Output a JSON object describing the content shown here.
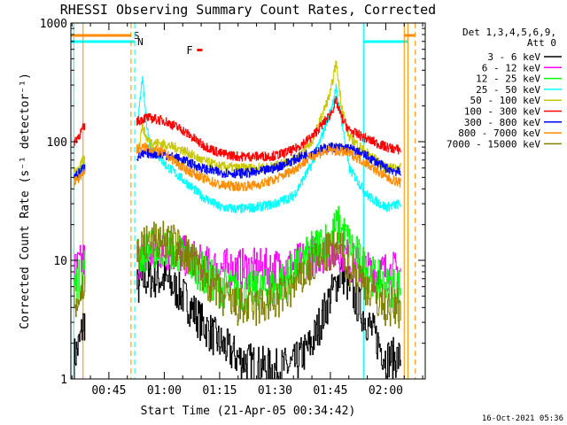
{
  "chart_data": {
    "type": "line",
    "title": "RHESSI Observing Summary Count Rates, Corrected",
    "xlabel": "Start Time (21-Apr-05 00:34:42)",
    "ylabel": "Corrected Count Rate (s⁻¹ detector⁻¹)",
    "y_scale": "log",
    "ylim": [
      1,
      1000
    ],
    "xlim": [
      "00:34:42",
      "02:10:42"
    ],
    "x_ticks": [
      "00:45",
      "01:00",
      "01:15",
      "01:30",
      "01:45",
      "02:00"
    ],
    "y_ticks": [
      "1",
      "10",
      "100",
      "1000"
    ],
    "legend": {
      "position": "right",
      "header_line1": "Det 1,3,4,5,6,9,",
      "header_line2": "Att 0"
    },
    "series": [
      {
        "name": "3 - 6 keV",
        "color": "#000000",
        "x": [
          "00:35:30",
          "00:37:00",
          "00:38:00",
          "00:53:00",
          "00:55:00",
          "01:00:00",
          "01:05:00",
          "01:10:00",
          "01:15:00",
          "01:20:00",
          "01:25:00",
          "01:30:00",
          "01:35:00",
          "01:40:00",
          "01:45:00",
          "01:48:00",
          "01:50:00",
          "01:55:00",
          "01:58:00",
          "02:00:00",
          "02:04:00"
        ],
        "y": [
          1.5,
          2,
          3,
          6,
          7,
          7,
          5,
          3,
          2,
          1.5,
          1.3,
          1.2,
          1.3,
          2,
          5,
          8,
          6,
          3,
          2,
          1.5,
          1.5
        ]
      },
      {
        "name": "6 - 12 keV",
        "color": "#ff00ff",
        "x": [
          "00:35:30",
          "00:37:00",
          "00:38:00",
          "00:53:00",
          "00:55:00",
          "01:00:00",
          "01:05:00",
          "01:08:00",
          "01:10:00",
          "01:15:00",
          "01:20:00",
          "01:25:00",
          "01:30:00",
          "01:35:00",
          "01:40:00",
          "01:45:00",
          "01:48:00",
          "01:50:00",
          "01:55:00",
          "02:00:00",
          "02:04:00"
        ],
        "y": [
          8,
          9,
          10,
          10,
          11,
          12,
          11,
          10,
          9,
          8.5,
          8.5,
          8.5,
          8.5,
          9,
          11,
          12,
          12,
          10,
          8,
          8,
          8
        ]
      },
      {
        "name": "12 - 25 keV",
        "color": "#00ff00",
        "x": [
          "00:35:30",
          "00:37:00",
          "00:38:00",
          "00:53:00",
          "00:55:00",
          "01:00:00",
          "01:05:00",
          "01:10:00",
          "01:15:00",
          "01:20:00",
          "01:25:00",
          "01:30:00",
          "01:35:00",
          "01:40:00",
          "01:45:00",
          "01:47:00",
          "01:50:00",
          "01:55:00",
          "02:00:00",
          "02:04:00"
        ],
        "y": [
          6,
          7,
          9,
          11,
          12,
          13,
          11,
          8,
          6,
          5.5,
          5.5,
          6,
          8,
          12,
          16,
          20,
          14,
          8,
          6,
          6
        ]
      },
      {
        "name": "25 - 50 keV",
        "color": "#00ffff",
        "x": [
          "00:35:30",
          "00:37:00",
          "00:38:00",
          "00:53:00",
          "00:54:00",
          "00:55:00",
          "00:56:00",
          "01:00:00",
          "01:05:00",
          "01:10:00",
          "01:15:00",
          "01:20:00",
          "01:25:00",
          "01:30:00",
          "01:35:00",
          "01:40:00",
          "01:45:00",
          "01:46:30",
          "01:48:00",
          "01:50:00",
          "01:55:00",
          "02:00:00",
          "02:04:00"
        ],
        "y": [
          50,
          55,
          60,
          160,
          350,
          160,
          95,
          65,
          48,
          35,
          28,
          27,
          28,
          30,
          35,
          65,
          180,
          280,
          150,
          60,
          35,
          28,
          30
        ]
      },
      {
        "name": "50 - 100 keV",
        "color": "#c8c800",
        "x": [
          "00:35:30",
          "00:37:00",
          "00:38:00",
          "00:53:00",
          "00:54:00",
          "00:55:00",
          "00:56:00",
          "01:00:00",
          "01:05:00",
          "01:10:00",
          "01:15:00",
          "01:20:00",
          "01:25:00",
          "01:30:00",
          "01:35:00",
          "01:40:00",
          "01:45:00",
          "01:46:30",
          "01:48:00",
          "01:50:00",
          "01:55:00",
          "02:00:00",
          "02:04:00"
        ],
        "y": [
          55,
          60,
          70,
          90,
          140,
          110,
          100,
          95,
          85,
          70,
          62,
          60,
          60,
          62,
          70,
          100,
          260,
          470,
          200,
          110,
          80,
          60,
          60
        ]
      },
      {
        "name": "100 - 300 keV",
        "color": "#ff0000",
        "x": [
          "00:35:30",
          "00:37:00",
          "00:38:00",
          "00:53:00",
          "00:55:00",
          "01:00:00",
          "01:05:00",
          "01:10:00",
          "01:15:00",
          "01:20:00",
          "01:25:00",
          "01:30:00",
          "01:35:00",
          "01:40:00",
          "01:45:00",
          "01:46:30",
          "01:48:00",
          "01:50:00",
          "01:55:00",
          "02:00:00",
          "02:04:00"
        ],
        "y": [
          100,
          115,
          130,
          150,
          160,
          150,
          125,
          95,
          80,
          75,
          75,
          76,
          85,
          110,
          170,
          220,
          160,
          125,
          105,
          90,
          85
        ]
      },
      {
        "name": "300 - 800 keV",
        "color": "#0000ff",
        "x": [
          "00:35:30",
          "00:37:00",
          "00:38:00",
          "00:53:00",
          "00:55:00",
          "01:00:00",
          "01:05:00",
          "01:10:00",
          "01:15:00",
          "01:20:00",
          "01:25:00",
          "01:30:00",
          "01:35:00",
          "01:40:00",
          "01:45:00",
          "01:50:00",
          "01:55:00",
          "02:00:00",
          "02:04:00"
        ],
        "y": [
          50,
          55,
          60,
          75,
          80,
          78,
          70,
          60,
          55,
          54,
          55,
          60,
          70,
          82,
          90,
          88,
          75,
          60,
          55
        ]
      },
      {
        "name": "800 - 7000 keV",
        "color": "#ff8c00",
        "x": [
          "00:35:30",
          "00:37:00",
          "00:38:00",
          "00:53:00",
          "00:55:00",
          "01:00:00",
          "01:05:00",
          "01:10:00",
          "01:15:00",
          "01:20:00",
          "01:25:00",
          "01:30:00",
          "01:35:00",
          "01:40:00",
          "01:45:00",
          "01:50:00",
          "01:55:00",
          "02:00:00",
          "02:04:00"
        ],
        "y": [
          45,
          50,
          55,
          88,
          90,
          80,
          60,
          50,
          43,
          42,
          43,
          48,
          58,
          75,
          85,
          80,
          65,
          50,
          45
        ]
      },
      {
        "name": "7000 - 15000 keV",
        "color": "#808000",
        "x": [
          "00:35:30",
          "00:37:00",
          "00:38:00",
          "00:53:00",
          "00:55:00",
          "01:00:00",
          "01:05:00",
          "01:10:00",
          "01:15:00",
          "01:20:00",
          "01:25:00",
          "01:30:00",
          "01:35:00",
          "01:40:00",
          "01:45:00",
          "01:48:00",
          "01:50:00",
          "01:55:00",
          "02:00:00",
          "02:04:00"
        ],
        "y": [
          4,
          5,
          6,
          12,
          14,
          15,
          12,
          8,
          5,
          4,
          4,
          4.5,
          6,
          9,
          12,
          12,
          9,
          6,
          4,
          4
        ]
      }
    ],
    "data_gaps": [
      [
        "00:38:30",
        "00:52:30"
      ],
      [
        "02:04:30",
        "02:10:42"
      ]
    ],
    "flags": [
      {
        "label": "S",
        "color": "#ff8c00",
        "kind": "saa",
        "intervals": [
          [
            "00:34:42",
            "00:51:00"
          ],
          [
            "02:05:00",
            "02:08:00"
          ]
        ]
      },
      {
        "label": "N",
        "color": "#00ffff",
        "kind": "night",
        "intervals": [
          [
            "00:34:42",
            "00:52:00"
          ],
          [
            "01:54:00",
            "02:06:00"
          ]
        ]
      },
      {
        "label": "F",
        "color": "#ff0000",
        "kind": "flare",
        "intervals": [
          [
            "01:06:00",
            "01:07:30"
          ]
        ]
      }
    ],
    "vertical_markers": [
      {
        "t": "00:35:30",
        "color": "#00ffff",
        "style": "solid"
      },
      {
        "t": "00:38:00",
        "color": "#ff8c00",
        "style": "solid"
      },
      {
        "t": "00:51:00",
        "color": "#ff8c00",
        "style": "dashed"
      },
      {
        "t": "00:52:00",
        "color": "#00ffff",
        "style": "dashed"
      },
      {
        "t": "01:54:00",
        "color": "#00ffff",
        "style": "solid"
      },
      {
        "t": "02:05:00",
        "color": "#ff8c00",
        "style": "solid"
      },
      {
        "t": "02:06:00",
        "color": "#ff8c00",
        "style": "solid"
      },
      {
        "t": "02:08:00",
        "color": "#ff8c00",
        "style": "dashed"
      }
    ],
    "footer_text": "16-Oct-2021 05:36"
  }
}
